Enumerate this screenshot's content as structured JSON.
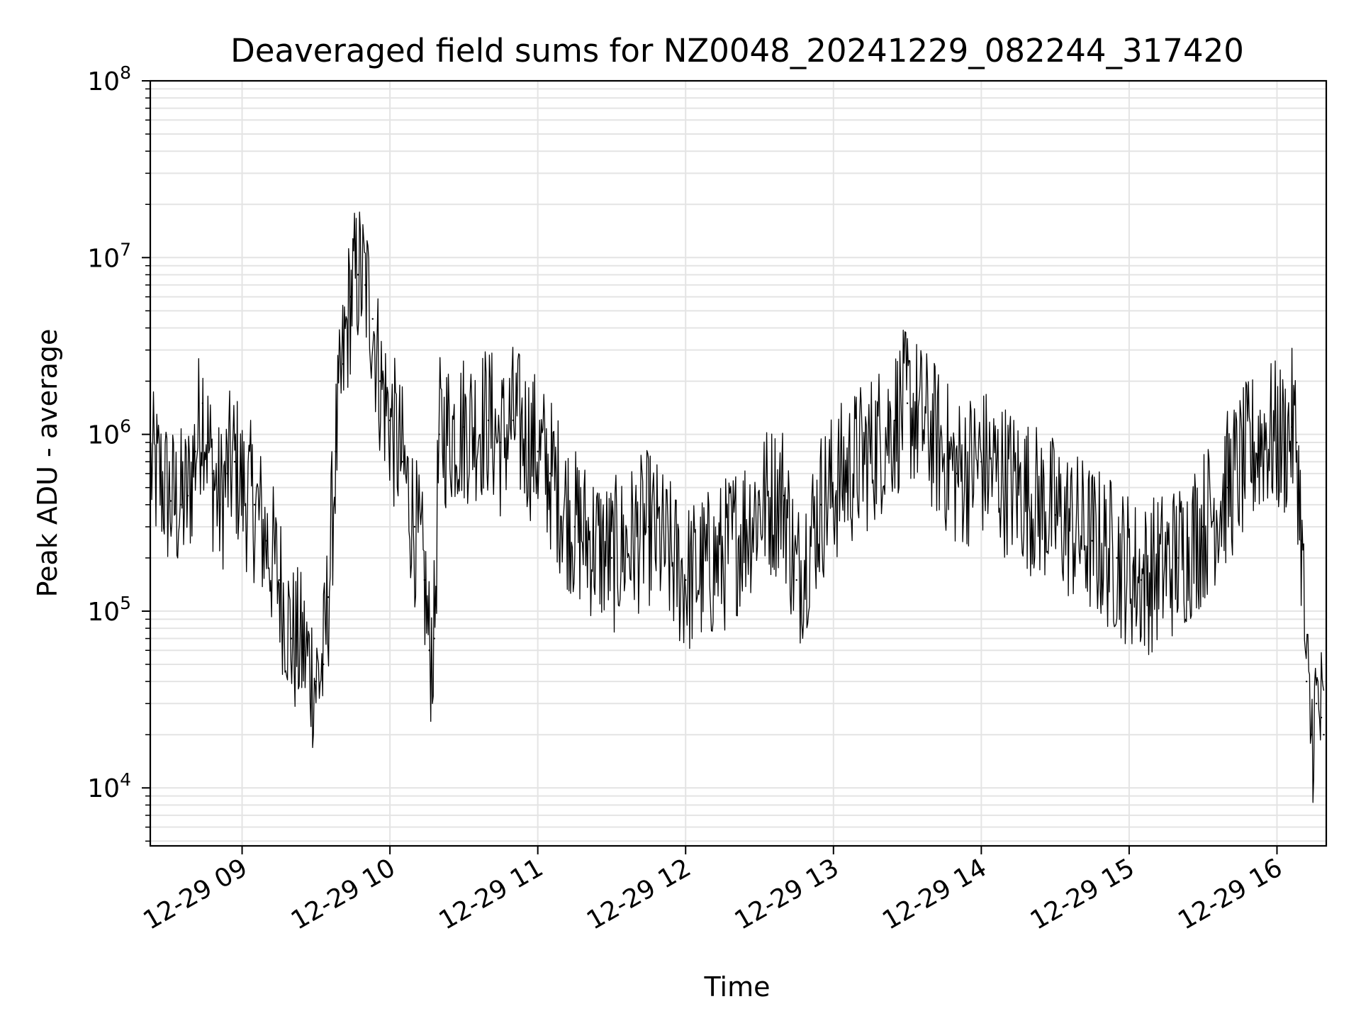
{
  "chart_data": {
    "type": "line",
    "title": "Deaveraged field sums for NZ0048_20241229_082244_317420",
    "xlabel": "Time",
    "ylabel": "Peak ADU - average",
    "yscale": "log",
    "ylim": [
      4700,
      100000000
    ],
    "xlim": [
      "2024-12-29 08:22:44",
      "2024-12-29 16:20:00"
    ],
    "grid": true,
    "x_ticks": [
      "12-29 09",
      "12-29 10",
      "12-29 11",
      "12-29 12",
      "12-29 13",
      "12-29 14",
      "12-29 15",
      "12-29 16"
    ],
    "y_ticks": [
      {
        "base": "10",
        "exp": "4",
        "value": 10000
      },
      {
        "base": "10",
        "exp": "5",
        "value": 100000
      },
      {
        "base": "10",
        "exp": "6",
        "value": 1000000
      },
      {
        "base": "10",
        "exp": "7",
        "value": 10000000
      },
      {
        "base": "10",
        "exp": "8",
        "value": 100000000
      }
    ],
    "line_color": "#000000",
    "series": [
      {
        "x": [
          "2024-12-29 08:23",
          "2024-12-29 08:27",
          "2024-12-29 08:31",
          "2024-12-29 08:35",
          "2024-12-29 08:38",
          "2024-12-29 08:41",
          "2024-12-29 08:44",
          "2024-12-29 08:46",
          "2024-12-29 08:48",
          "2024-12-29 08:51",
          "2024-12-29 08:54",
          "2024-12-29 08:57",
          "2024-12-29 09:00",
          "2024-12-29 09:05",
          "2024-12-29 09:10",
          "2024-12-29 09:15",
          "2024-12-29 09:20",
          "2024-12-29 09:25",
          "2024-12-29 09:30",
          "2024-12-29 09:33",
          "2024-12-29 09:35",
          "2024-12-29 09:38",
          "2024-12-29 09:41",
          "2024-12-29 09:44",
          "2024-12-29 09:47",
          "2024-12-29 09:50",
          "2024-12-29 09:53",
          "2024-12-29 09:56",
          "2024-12-29 10:00",
          "2024-12-29 10:05",
          "2024-12-29 10:10",
          "2024-12-29 10:14",
          "2024-12-29 10:16",
          "2024-12-29 10:18",
          "2024-12-29 10:20",
          "2024-12-29 10:30",
          "2024-12-29 10:40",
          "2024-12-29 10:45",
          "2024-12-29 10:50",
          "2024-12-29 11:00",
          "2024-12-29 11:05",
          "2024-12-29 11:15",
          "2024-12-29 11:30",
          "2024-12-29 11:45",
          "2024-12-29 12:00",
          "2024-12-29 12:15",
          "2024-12-29 12:30",
          "2024-12-29 12:40",
          "2024-12-29 12:45",
          "2024-12-29 12:55",
          "2024-12-29 13:05",
          "2024-12-29 13:15",
          "2024-12-29 13:25",
          "2024-12-29 13:30",
          "2024-12-29 13:40",
          "2024-12-29 13:50",
          "2024-12-29 14:00",
          "2024-12-29 14:15",
          "2024-12-29 14:30",
          "2024-12-29 14:45",
          "2024-12-29 14:55",
          "2024-12-29 15:05",
          "2024-12-29 15:20",
          "2024-12-29 15:30",
          "2024-12-29 15:40",
          "2024-12-29 15:50",
          "2024-12-29 15:55",
          "2024-12-29 16:03",
          "2024-12-29 16:06",
          "2024-12-29 16:08",
          "2024-12-29 16:10",
          "2024-12-29 16:12",
          "2024-12-29 16:14",
          "2024-12-29 16:16",
          "2024-12-29 16:18",
          "2024-12-29 16:19"
        ],
        "y": [
          650000,
          550000,
          420000,
          400000,
          450000,
          800000,
          1500000,
          900000,
          600000,
          400000,
          600000,
          700000,
          500000,
          400000,
          250000,
          150000,
          70000,
          60000,
          40000,
          50000,
          120000,
          800000,
          2500000,
          6000000,
          8000000,
          7000000,
          4500000,
          2000000,
          1200000,
          700000,
          300000,
          150000,
          60000,
          70000,
          1000000,
          1100000,
          1200000,
          900000,
          1200000,
          800000,
          600000,
          300000,
          200000,
          300000,
          150000,
          200000,
          400000,
          450000,
          150000,
          400000,
          600000,
          800000,
          1200000,
          1500000,
          1000000,
          600000,
          700000,
          500000,
          350000,
          250000,
          200000,
          150000,
          200000,
          300000,
          500000,
          800000,
          1000000,
          900000,
          1100000,
          900000,
          250000,
          40000,
          20000,
          30000,
          25000,
          20000
        ]
      }
    ]
  }
}
